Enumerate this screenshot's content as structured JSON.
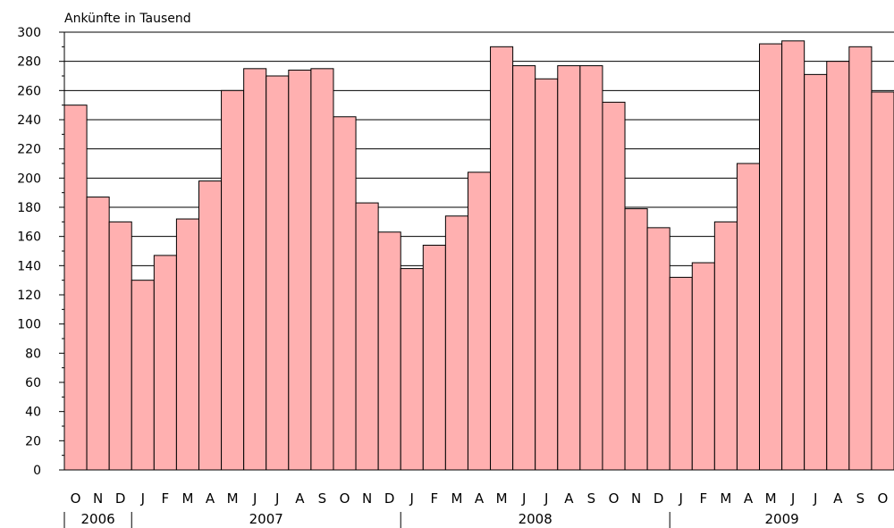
{
  "chart_data": {
    "type": "bar",
    "title": "",
    "ylabel": "Ankünfte in Tausend",
    "xlabel": "",
    "ylim": [
      0,
      300
    ],
    "y_ticks": [
      0,
      20,
      40,
      60,
      80,
      100,
      120,
      140,
      160,
      180,
      200,
      220,
      240,
      260,
      280,
      300
    ],
    "grid": "horizontal",
    "bar_color": "#ffb0b0",
    "bar_edge_color": "#000000",
    "categories": [
      "O",
      "N",
      "D",
      "J",
      "F",
      "M",
      "A",
      "M",
      "J",
      "J",
      "A",
      "S",
      "O",
      "N",
      "D",
      "J",
      "F",
      "M",
      "A",
      "M",
      "J",
      "J",
      "A",
      "S",
      "O",
      "N",
      "D",
      "J",
      "F",
      "M",
      "A",
      "M",
      "J",
      "J",
      "A",
      "S",
      "O"
    ],
    "values": [
      250,
      187,
      170,
      130,
      147,
      172,
      198,
      260,
      275,
      270,
      274,
      275,
      242,
      183,
      163,
      138,
      154,
      174,
      204,
      290,
      277,
      268,
      277,
      277,
      252,
      179,
      166,
      132,
      142,
      170,
      210,
      292,
      294,
      271,
      280,
      290,
      259
    ],
    "year_groups": [
      {
        "label": "2006",
        "start": 0,
        "count": 3
      },
      {
        "label": "2007",
        "start": 3,
        "count": 12
      },
      {
        "label": "2008",
        "start": 15,
        "count": 12
      },
      {
        "label": "2009",
        "start": 27,
        "count": 10
      }
    ]
  }
}
